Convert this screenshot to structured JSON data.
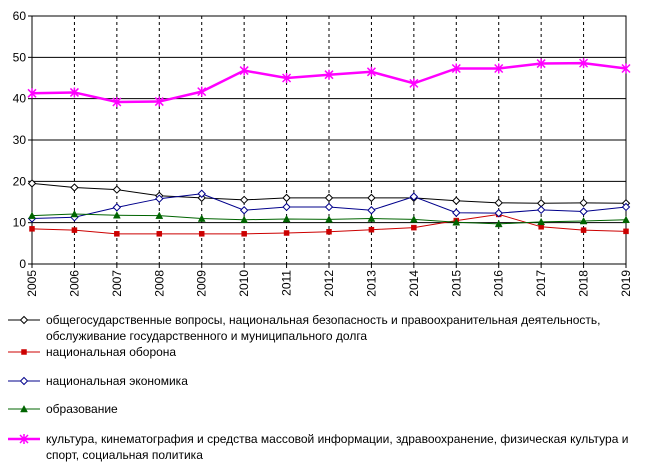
{
  "chart_data": {
    "type": "line",
    "x": [
      "2005",
      "2006",
      "2007",
      "2008",
      "2009",
      "2010",
      "2011",
      "2012",
      "2013",
      "2014",
      "2015",
      "2016",
      "2017",
      "2018",
      "2019"
    ],
    "ylim": [
      0,
      60
    ],
    "yticks": [
      "0",
      "10",
      "20",
      "30",
      "40",
      "50",
      "60"
    ],
    "grid": true,
    "legend_position": "bottom",
    "series": [
      {
        "name": "общегосударственные вопросы, национальная безопасность и правоохранительная деятельность, обслуживание государственного и муниципального долга",
        "color": "#000000",
        "marker": "diamond-open",
        "values": [
          19.5,
          18.5,
          18,
          16.5,
          16,
          15.5,
          16,
          16,
          16,
          16,
          15.3,
          14.8,
          14.7,
          14.8,
          14.7
        ]
      },
      {
        "name": "национальная оборона",
        "color": "#cc0000",
        "marker": "square",
        "values": [
          8.5,
          8.2,
          7.3,
          7.3,
          7.3,
          7.3,
          7.5,
          7.8,
          8.3,
          8.8,
          10.5,
          12,
          9,
          8.2,
          7.9
        ]
      },
      {
        "name": "национальная экономика",
        "color": "#00008b",
        "marker": "diamond-open",
        "values": [
          11,
          11.3,
          13.7,
          15.8,
          17,
          13,
          13.8,
          13.8,
          13,
          16.3,
          12.4,
          12.3,
          13.1,
          12.7,
          13.8
        ]
      },
      {
        "name": "образование",
        "color": "#006400",
        "marker": "triangle",
        "values": [
          11.7,
          12.1,
          11.8,
          11.7,
          11,
          10.7,
          10.9,
          10.8,
          11,
          10.8,
          10.1,
          9.7,
          10.2,
          10.4,
          10.7
        ]
      },
      {
        "name": "культура, кинематография и средства массовой информации, здравоохранение, физическая культура и спорт, социальная политика",
        "color": "#ff00ff",
        "marker": "asterisk",
        "values": [
          41.3,
          41.5,
          39.2,
          39.3,
          41.7,
          46.8,
          45,
          45.8,
          46.5,
          43.7,
          47.3,
          47.3,
          48.5,
          48.6,
          47.3
        ]
      }
    ]
  }
}
